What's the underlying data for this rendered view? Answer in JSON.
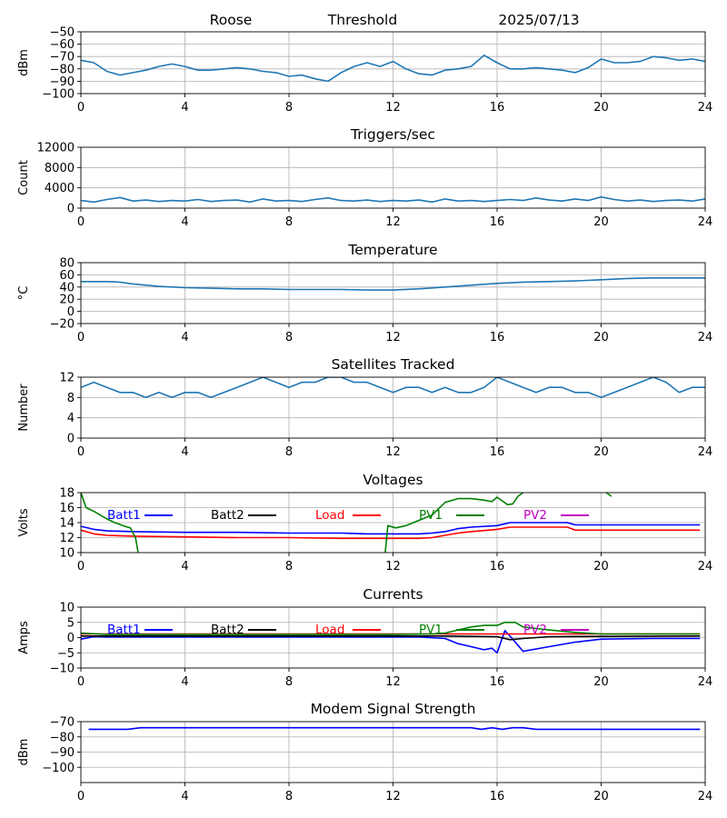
{
  "header": {
    "site": "Roose",
    "mode": "Threshold",
    "date": "2025/07/13"
  },
  "colors": {
    "default_series": "#1f77b4",
    "batt1": "#0000ff",
    "batt2": "#000000",
    "load": "#ff0000",
    "pv1": "#008000",
    "pv2": "#bf00bf"
  },
  "chart_data": [
    {
      "type": "line",
      "title": "",
      "ylabel": "dBm",
      "xlim": [
        0,
        24
      ],
      "xticks": [
        0,
        4,
        8,
        12,
        16,
        20,
        24
      ],
      "ylim": [
        -100,
        -50
      ],
      "yticks": [
        -100,
        -90,
        -80,
        -70,
        -60,
        -50
      ],
      "grid": true,
      "series": [
        {
          "color_key": "default_series",
          "x": [
            0,
            0.5,
            1,
            1.5,
            2,
            2.5,
            3,
            3.5,
            4,
            4.5,
            5,
            5.5,
            6,
            6.5,
            7,
            7.5,
            8,
            8.5,
            9,
            9.5,
            10,
            10.5,
            11,
            11.5,
            12,
            12.5,
            13,
            13.5,
            14,
            14.5,
            15,
            15.5,
            16,
            16.5,
            17,
            17.5,
            18,
            18.5,
            19,
            19.5,
            20,
            20.5,
            21,
            21.5,
            22,
            22.5,
            23,
            23.5,
            24
          ],
          "y": [
            -73,
            -75,
            -82,
            -85,
            -83,
            -81,
            -78,
            -76,
            -78,
            -81,
            -81,
            -80,
            -79,
            -80,
            -82,
            -83,
            -86,
            -85,
            -88,
            -90,
            -83,
            -78,
            -75,
            -78,
            -74,
            -80,
            -84,
            -85,
            -81,
            -80,
            -78,
            -69,
            -75,
            -80,
            -80,
            -79,
            -80,
            -81,
            -83,
            -79,
            -72,
            -75,
            -75,
            -74,
            -70,
            -71,
            -73,
            -72,
            -74
          ]
        }
      ]
    },
    {
      "type": "line",
      "title": "Triggers/sec",
      "ylabel": "Count",
      "xlim": [
        0,
        24
      ],
      "xticks": [
        0,
        4,
        8,
        12,
        16,
        20,
        24
      ],
      "ylim": [
        0,
        12000
      ],
      "yticks": [
        0,
        4000,
        8000,
        12000
      ],
      "grid": true,
      "series": [
        {
          "color_key": "default_series",
          "x": [
            0,
            0.5,
            1,
            1.5,
            2,
            2.5,
            3,
            3.5,
            4,
            4.5,
            5,
            5.5,
            6,
            6.5,
            7,
            7.5,
            8,
            8.5,
            9,
            9.5,
            10,
            10.5,
            11,
            11.5,
            12,
            12.5,
            13,
            13.5,
            14,
            14.5,
            15,
            15.5,
            16,
            16.5,
            17,
            17.5,
            18,
            18.5,
            19,
            19.5,
            20,
            20.5,
            21,
            21.5,
            22,
            22.5,
            23,
            23.5,
            24
          ],
          "y": [
            1500,
            1200,
            1700,
            2100,
            1400,
            1600,
            1300,
            1500,
            1400,
            1700,
            1300,
            1500,
            1600,
            1200,
            1800,
            1400,
            1500,
            1300,
            1700,
            2000,
            1500,
            1400,
            1600,
            1300,
            1500,
            1400,
            1600,
            1200,
            1800,
            1400,
            1500,
            1300,
            1500,
            1700,
            1500,
            2000,
            1600,
            1400,
            1800,
            1500,
            2200,
            1700,
            1400,
            1600,
            1300,
            1500,
            1600,
            1400,
            1800
          ]
        }
      ]
    },
    {
      "type": "line",
      "title": "Temperature",
      "ylabel": "°C",
      "xlim": [
        0,
        24
      ],
      "xticks": [
        0,
        4,
        8,
        12,
        16,
        20,
        24
      ],
      "ylim": [
        -20,
        80
      ],
      "yticks": [
        -20,
        0,
        20,
        40,
        60,
        80
      ],
      "grid": true,
      "series": [
        {
          "color_key": "default_series",
          "x": [
            0,
            1,
            1.5,
            2,
            3,
            4,
            5,
            6,
            7,
            8,
            9,
            10,
            11,
            12,
            13,
            14,
            15,
            16,
            17,
            18,
            19,
            20,
            21,
            22,
            23,
            24
          ],
          "y": [
            49,
            49,
            48,
            45,
            41,
            39,
            38,
            37,
            37,
            36,
            36,
            36,
            35,
            35,
            37,
            40,
            43,
            46,
            48,
            49,
            50,
            52,
            54,
            55,
            55,
            55
          ]
        }
      ]
    },
    {
      "type": "line",
      "title": "Satellites Tracked",
      "ylabel": "Number",
      "xlim": [
        0,
        24
      ],
      "xticks": [
        0,
        4,
        8,
        12,
        16,
        20,
        24
      ],
      "ylim": [
        0,
        12
      ],
      "yticks": [
        0,
        4,
        8,
        12
      ],
      "grid": true,
      "series": [
        {
          "color_key": "default_series",
          "x": [
            0,
            0.5,
            1,
            1.5,
            2,
            2.5,
            3,
            3.5,
            4,
            4.5,
            5,
            5.5,
            6,
            6.5,
            7,
            7.5,
            8,
            8.5,
            9,
            9.5,
            10,
            10.5,
            11,
            11.5,
            12,
            12.5,
            13,
            13.5,
            14,
            14.5,
            15,
            15.5,
            16,
            16.5,
            17,
            17.5,
            18,
            18.5,
            19,
            19.5,
            20,
            20.5,
            21,
            21.5,
            22,
            22.5,
            23,
            23.5,
            24
          ],
          "y": [
            10,
            11,
            10,
            9,
            9,
            8,
            9,
            8,
            9,
            9,
            8,
            9,
            10,
            11,
            12,
            11,
            10,
            11,
            11,
            12,
            12,
            11,
            11,
            10,
            9,
            10,
            10,
            9,
            10,
            9,
            9,
            10,
            12,
            11,
            10,
            9,
            10,
            10,
            9,
            9,
            8,
            9,
            10,
            11,
            12,
            11,
            9,
            10,
            10
          ]
        }
      ]
    },
    {
      "type": "line",
      "title": "Voltages",
      "ylabel": "Volts",
      "xlim": [
        0,
        24
      ],
      "xticks": [
        0,
        4,
        8,
        12,
        16,
        20,
        24
      ],
      "ylim": [
        10,
        18
      ],
      "yticks": [
        10,
        12,
        14,
        16,
        18
      ],
      "grid": true,
      "legend": [
        "Batt1",
        "Batt2",
        "Load",
        "PV1",
        "PV2"
      ],
      "series": [
        {
          "name": "Batt1",
          "color_key": "batt1",
          "x": [
            0,
            0.5,
            1,
            2,
            4,
            6,
            8,
            10,
            11,
            12,
            13,
            13.5,
            14,
            14.5,
            15,
            16,
            16.5,
            17,
            18,
            18.7,
            19,
            20,
            22,
            23.8
          ],
          "y": [
            13.5,
            13.1,
            12.9,
            12.8,
            12.7,
            12.7,
            12.6,
            12.6,
            12.5,
            12.5,
            12.5,
            12.6,
            12.8,
            13.2,
            13.4,
            13.6,
            14.0,
            14.0,
            14.0,
            14.0,
            13.7,
            13.7,
            13.7,
            13.7
          ]
        },
        {
          "name": "Batt2",
          "color_key": "batt2",
          "x": [],
          "y": []
        },
        {
          "name": "Load",
          "color_key": "load",
          "x": [
            0,
            0.5,
            1,
            2,
            4,
            6,
            8,
            10,
            11,
            12,
            13,
            13.5,
            14,
            14.5,
            15,
            16,
            16.5,
            17,
            18,
            18.7,
            19,
            20,
            22,
            23.8
          ],
          "y": [
            13.0,
            12.5,
            12.3,
            12.2,
            12.1,
            12.0,
            12.0,
            11.9,
            11.9,
            11.9,
            11.9,
            12.0,
            12.3,
            12.6,
            12.8,
            13.1,
            13.4,
            13.4,
            13.4,
            13.4,
            13.0,
            13.0,
            13.0,
            13.0
          ]
        },
        {
          "name": "PV1",
          "color_key": "pv1",
          "x": [
            0,
            0.2,
            0.5,
            1,
            1.3,
            1.7,
            1.9,
            2.1,
            2.2
          ],
          "y": [
            18.0,
            16.0,
            15.5,
            14.5,
            14.0,
            13.5,
            13.3,
            12.0,
            10.0
          ],
          "x2": [
            11.7,
            11.8,
            12.1,
            12.5,
            13.0,
            13.5,
            14.0,
            14.5,
            15.0,
            15.5,
            15.8,
            16.0,
            16.4,
            16.6,
            16.8,
            17.0
          ],
          "y2": [
            10.0,
            13.6,
            13.3,
            13.6,
            14.3,
            15.0,
            16.7,
            17.2,
            17.2,
            17.0,
            16.8,
            17.4,
            16.4,
            16.5,
            17.5,
            18.0
          ],
          "x3": [
            20.2,
            20.4
          ],
          "y3": [
            18.0,
            17.5
          ]
        },
        {
          "name": "PV2",
          "color_key": "pv2",
          "x": [],
          "y": []
        }
      ]
    },
    {
      "type": "line",
      "title": "Currents",
      "ylabel": "Amps",
      "xlim": [
        0,
        24
      ],
      "xticks": [
        0,
        4,
        8,
        12,
        16,
        20,
        24
      ],
      "ylim": [
        -10,
        10
      ],
      "yticks": [
        -10,
        -5,
        0,
        5,
        10
      ],
      "grid": true,
      "legend": [
        "Batt1",
        "Batt2",
        "Load",
        "PV1",
        "PV2"
      ],
      "series": [
        {
          "name": "Batt1",
          "color_key": "batt1",
          "x": [
            0,
            0.5,
            1,
            4,
            8,
            12,
            13,
            14,
            14.5,
            15,
            15.5,
            15.8,
            16.0,
            16.3,
            16.6,
            17,
            18,
            19,
            20,
            22,
            23.8
          ],
          "y": [
            -0.5,
            0.3,
            0.2,
            0.2,
            0.2,
            0.2,
            0.2,
            -0.3,
            -2.0,
            -3.0,
            -4.0,
            -3.5,
            -5.0,
            2.3,
            -0.5,
            -4.5,
            -3.0,
            -1.5,
            -0.5,
            -0.3,
            -0.3
          ]
        },
        {
          "name": "Batt2",
          "color_key": "batt2",
          "x": [
            0,
            4,
            8,
            12,
            14,
            16,
            16.5,
            17,
            18,
            20,
            23.8
          ],
          "y": [
            0.5,
            0.5,
            0.5,
            0.5,
            0.5,
            0.3,
            -0.7,
            -0.3,
            0.3,
            0.4,
            0.5
          ]
        },
        {
          "name": "Load",
          "color_key": "load",
          "x": [
            0,
            4,
            8,
            12,
            16,
            20,
            23.8
          ],
          "y": [
            1.2,
            1.2,
            1.2,
            1.2,
            1.2,
            1.2,
            1.2
          ]
        },
        {
          "name": "PV1",
          "color_key": "pv1",
          "x": [
            0,
            1,
            4,
            8,
            12,
            13.5,
            14,
            14.5,
            15,
            15.5,
            16,
            16.3,
            16.7,
            17,
            17.5,
            18,
            19,
            20,
            22,
            23.8
          ],
          "y": [
            1.5,
            1.0,
            1.0,
            1.0,
            1.0,
            1.2,
            1.5,
            2.5,
            3.5,
            4.0,
            4.0,
            5.0,
            5.0,
            3.5,
            3.0,
            2.5,
            1.7,
            1.2,
            1.2,
            1.2
          ]
        },
        {
          "name": "PV2",
          "color_key": "pv2",
          "x": [],
          "y": []
        }
      ]
    },
    {
      "type": "line",
      "title": "Modem Signal Strength",
      "ylabel": "dBm",
      "xlim": [
        0,
        24
      ],
      "xticks": [
        0,
        4,
        8,
        12,
        16,
        20,
        24
      ],
      "ylim": [
        -110,
        -70
      ],
      "yticks": [
        -100,
        -90,
        -80,
        -70
      ],
      "grid": true,
      "series": [
        {
          "color_key": "batt1",
          "x": [
            0.3,
            1.8,
            2.3,
            4,
            8,
            12,
            15,
            15.4,
            15.8,
            16.2,
            16.6,
            17,
            17.5,
            18,
            20,
            22,
            23.8
          ],
          "y": [
            -75,
            -75,
            -74,
            -74,
            -74,
            -74,
            -74,
            -75,
            -74,
            -75,
            -74,
            -74,
            -75,
            -75,
            -75,
            -75,
            -75
          ]
        }
      ]
    }
  ]
}
